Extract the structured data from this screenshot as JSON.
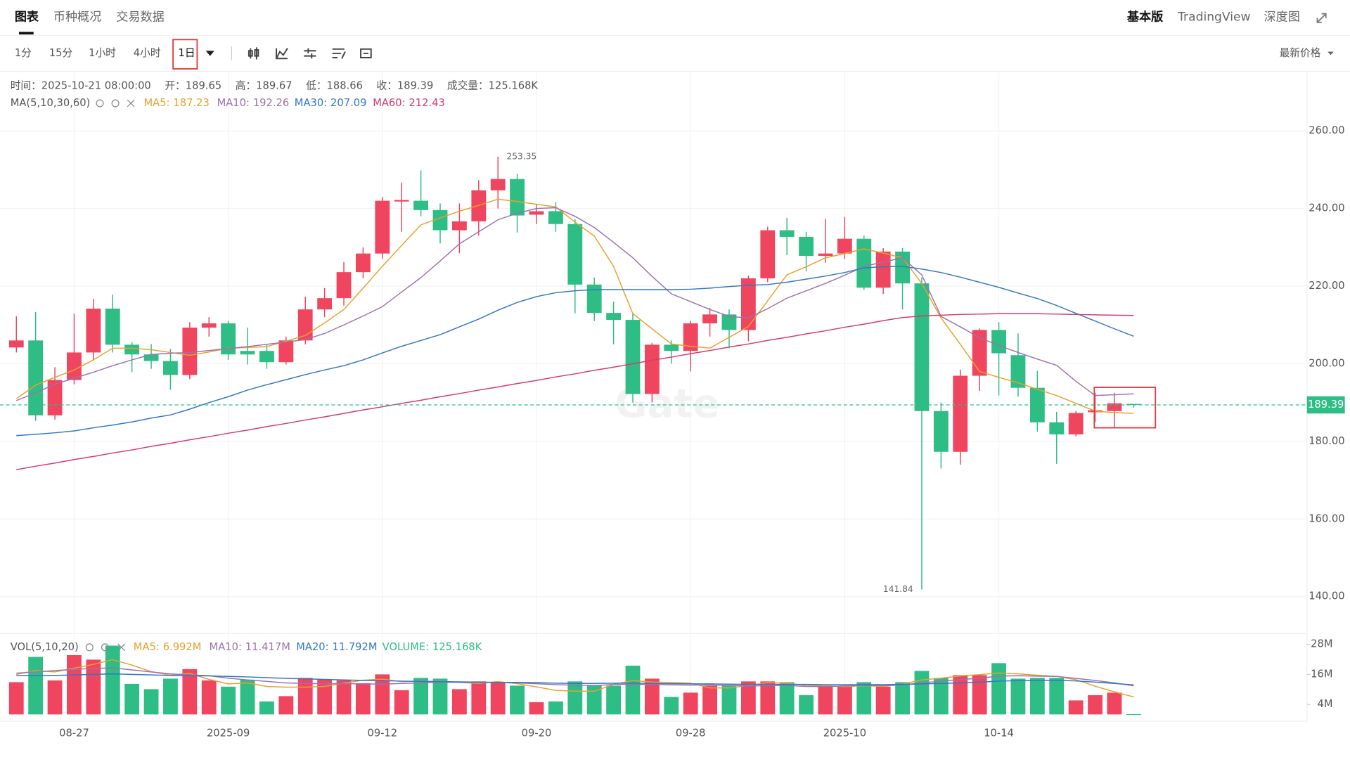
{
  "header": {
    "tabs": [
      "图表",
      "币种概况",
      "交易数据"
    ],
    "links": [
      "基本版",
      "TradingView",
      "深度图"
    ],
    "intervals": [
      "1分",
      "15分",
      "1小时",
      "4小时",
      "1日"
    ],
    "price_mode": "最新价格"
  },
  "chart_data": [
    {
      "type": "candlestick",
      "watermark": "Gate",
      "legend": {
        "time_label": "时间：",
        "time": "2025-10-21 08:00:00",
        "open_label": "开：",
        "high_label": "高：",
        "low_label": "低：",
        "close_label": "收：",
        "volume_label": "成交量："
      },
      "indicator": "MA(5,10,30,60)",
      "categories": [
        null,
        null,
        null,
        "08-27",
        null,
        null,
        null,
        null,
        null,
        null,
        null,
        "2025-09",
        null,
        null,
        null,
        null,
        null,
        null,
        null,
        "09-12",
        null,
        null,
        null,
        null,
        null,
        null,
        null,
        "09-20",
        null,
        null,
        null,
        null,
        null,
        null,
        null,
        "09-28",
        null,
        null,
        null,
        null,
        null,
        null,
        null,
        "2025-10",
        null,
        null,
        null,
        null,
        null,
        null,
        null,
        "10-14",
        null,
        null,
        null,
        null,
        null,
        null,
        null
      ],
      "open": [
        204.2,
        206.0,
        186.7,
        195.8,
        202.9,
        214.2,
        204.9,
        202.4,
        200.7,
        197.1,
        209.3,
        210.4,
        203.3,
        203.3,
        200.4,
        206.0,
        214.0,
        216.9,
        223.6,
        228.4,
        241.8,
        242.0,
        239.6,
        234.4,
        236.7,
        244.7,
        247.6,
        238.4,
        239.3,
        236.0,
        220.4,
        213.1,
        211.3,
        192.2,
        204.9,
        203.3,
        210.4,
        212.7,
        208.7,
        222.0,
        234.4,
        232.7,
        227.8,
        228.4,
        232.2,
        219.6,
        228.9,
        220.7,
        187.8,
        177.3,
        196.9,
        208.7,
        202.2,
        193.8,
        184.9,
        181.8,
        187.5,
        187.8,
        189.65
      ],
      "high": [
        212.2,
        213.3,
        199.1,
        212.9,
        216.7,
        217.8,
        205.6,
        205.1,
        203.8,
        210.7,
        212.0,
        211.1,
        209.3,
        205.1,
        207.0,
        217.3,
        219.5,
        226.2,
        230.0,
        243.0,
        246.7,
        249.8,
        241.3,
        241.3,
        247.3,
        253.35,
        249.0,
        241.0,
        241.6,
        237.3,
        222.2,
        216.0,
        213.0,
        205.4,
        206.0,
        211.1,
        214.4,
        214.0,
        222.7,
        235.3,
        237.6,
        234.0,
        237.3,
        237.8,
        233.0,
        229.8,
        229.8,
        222.2,
        190.0,
        198.5,
        209.1,
        210.7,
        207.8,
        198.2,
        187.6,
        187.8,
        192.5,
        192.5,
        189.67
      ],
      "low": [
        202.9,
        185.3,
        185.6,
        194.7,
        201.0,
        202.9,
        197.8,
        198.7,
        193.3,
        196.0,
        207.0,
        201.0,
        199.8,
        198.7,
        199.8,
        205.0,
        212.0,
        215.0,
        222.0,
        227.0,
        234.0,
        238.0,
        231.0,
        228.5,
        233.0,
        240.0,
        233.8,
        236.0,
        234.0,
        213.0,
        211.0,
        205.0,
        190.0,
        190.0,
        200.0,
        198.0,
        207.0,
        204.0,
        205.8,
        221.0,
        228.0,
        223.8,
        226.0,
        227.0,
        219.0,
        218.0,
        214.0,
        141.84,
        173.0,
        174.0,
        193.0,
        191.8,
        191.5,
        182.5,
        174.2,
        181.3,
        185.0,
        183.6,
        188.66
      ],
      "close": [
        206.0,
        186.7,
        195.8,
        202.9,
        214.2,
        204.9,
        202.4,
        200.7,
        197.1,
        209.3,
        210.4,
        202.4,
        202.4,
        200.4,
        206.0,
        214.0,
        216.9,
        223.6,
        228.4,
        242.0,
        242.2,
        239.6,
        234.4,
        236.7,
        244.7,
        247.6,
        238.2,
        239.3,
        236.0,
        220.4,
        213.1,
        211.3,
        192.2,
        204.9,
        203.3,
        210.4,
        212.7,
        208.7,
        222.0,
        234.4,
        232.7,
        227.8,
        228.4,
        232.2,
        219.6,
        228.9,
        220.7,
        187.8,
        177.3,
        196.9,
        208.7,
        202.7,
        193.8,
        184.9,
        181.8,
        187.3,
        188.0,
        189.8,
        189.39
      ],
      "up_color": "#f0455f",
      "down_color": "#2ebd85",
      "ylim": [
        130.7,
        275.1
      ],
      "yticks": [
        {
          "value": 140,
          "label": "140.00"
        },
        {
          "value": 160,
          "label": "160.00"
        },
        {
          "value": 180,
          "label": "180.00"
        },
        {
          "value": 200,
          "label": "200.00"
        },
        {
          "value": 220,
          "label": "220.00"
        },
        {
          "value": 240,
          "label": "240.00"
        },
        {
          "value": 260,
          "label": "260.00"
        }
      ],
      "grid": true,
      "series": [
        {
          "name": "MA5:",
          "color": "#e9a02b",
          "values": [
            191,
            194.5,
            196.5,
            198.4,
            201,
            204,
            204,
            203.6,
            202.9,
            202.2,
            203,
            204,
            204.2,
            204.4,
            205.8,
            207.3,
            210.5,
            214,
            219.5,
            225.1,
            230.5,
            235.8,
            237.6,
            239.3,
            240.8,
            242.4,
            241.8,
            241.1,
            240.4,
            236.5,
            232.9,
            225.1,
            212.9,
            209,
            205.1,
            204.5,
            204,
            206.8,
            209.6,
            216.2,
            222.9,
            225,
            227.3,
            228.4,
            229.6,
            228.5,
            227.3,
            220.7,
            211.8,
            205,
            198,
            196.5,
            195.1,
            193.4,
            191.8,
            189.8,
            187.8,
            187.4,
            187.23
          ]
        },
        {
          "name": "MA10:",
          "color": "#9b72b0",
          "values": [
            190.5,
            192.5,
            194.7,
            196.3,
            197.8,
            199.5,
            201,
            202.4,
            202.7,
            202.9,
            203.4,
            203.9,
            204.4,
            205,
            205.6,
            206.2,
            207.8,
            210,
            212.3,
            214.7,
            218.5,
            222.2,
            226.5,
            230.9,
            234,
            237.1,
            238.8,
            240,
            240.2,
            238,
            235.1,
            231.3,
            227.3,
            222.5,
            218,
            216,
            214,
            212.2,
            211.8,
            214.2,
            216.9,
            218.8,
            220.7,
            222.8,
            225.1,
            226.2,
            227.3,
            222.9,
            212.2,
            209.5,
            206.7,
            204.7,
            202.9,
            201.2,
            199.6,
            195.5,
            191.8,
            192,
            192.26
          ]
        },
        {
          "name": "MA30:",
          "color": "#3178c6",
          "values": [
            181.5,
            181.8,
            182.2,
            182.7,
            183.5,
            184.2,
            185,
            186,
            186.8,
            188.3,
            190,
            191.5,
            193.2,
            194.6,
            195.9,
            197.2,
            198.4,
            199.5,
            201,
            202.8,
            204.5,
            206,
            207.5,
            209.5,
            211.5,
            213.8,
            215.8,
            217.3,
            218.3,
            218.8,
            219.1,
            219.1,
            219.1,
            219.1,
            219.1,
            219.2,
            219.5,
            219.9,
            220.2,
            220.4,
            221,
            221.8,
            222.6,
            223.5,
            224.7,
            225,
            225.1,
            224.4,
            223.5,
            222.3,
            221,
            219.7,
            218.2,
            216.8,
            215,
            213,
            211,
            209,
            207.09
          ]
        },
        {
          "name": "MA60:",
          "color": "#d63c6a",
          "values": [
            172.7,
            173.6,
            174.4,
            175.3,
            176.1,
            177.0,
            177.8,
            178.7,
            179.5,
            180.4,
            181.2,
            182.1,
            182.9,
            183.8,
            184.6,
            185.5,
            186.3,
            187.2,
            188.1,
            188.9,
            189.8,
            190.6,
            191.5,
            192.3,
            193.2,
            194.0,
            194.9,
            195.7,
            196.6,
            197.4,
            198.3,
            199.1,
            200.0,
            200.9,
            201.7,
            202.6,
            203.4,
            204.3,
            205.1,
            206.0,
            206.8,
            207.7,
            208.5,
            209.4,
            210.2,
            211.1,
            211.9,
            212.3,
            212.5,
            212.7,
            212.8,
            212.9,
            212.9,
            212.9,
            212.8,
            212.7,
            212.6,
            212.5,
            212.43
          ]
        }
      ]
    },
    {
      "type": "bar",
      "indicator": "VOL(5,10,20)",
      "values": [
        12.9,
        23,
        13.6,
        23.7,
        21.9,
        27.5,
        12.2,
        10.1,
        14.3,
        18.1,
        13.6,
        11.1,
        13.9,
        5.2,
        7.3,
        14.6,
        13.9,
        13.6,
        12.5,
        16,
        9.7,
        14.6,
        14.3,
        10.1,
        13.2,
        12.9,
        11.5,
        4.9,
        5.2,
        13.2,
        11.8,
        11.5,
        19.5,
        14.3,
        7,
        8.7,
        11.5,
        11.5,
        13.2,
        13.2,
        12.9,
        7.7,
        11.5,
        11.1,
        12.9,
        11.1,
        12.9,
        17.4,
        14.6,
        15.7,
        15.7,
        20.5,
        14.3,
        14.6,
        14.6,
        5.6,
        7.7,
        8.7,
        0.125168
      ],
      "current_name": "VOLUME:",
      "current_label": "125.168K",
      "ylim": [
        0,
        32
      ],
      "yticks": [
        {
          "value": 4,
          "label": "4M"
        },
        {
          "value": 16,
          "label": "16M"
        },
        {
          "value": 28,
          "label": "28M"
        }
      ],
      "series": [
        {
          "name": "MA5:",
          "color": "#e9a02b",
          "last_label": "6.992M",
          "values": [
            16,
            17.5,
            17,
            18.5,
            20,
            21.9,
            19.7,
            17.1,
            15.7,
            16.4,
            14,
            12.2,
            12.6,
            11.2,
            10.9,
            10.9,
            11.2,
            12.5,
            13.7,
            14.1,
            13.1,
            13.3,
            13.2,
            12.8,
            12.4,
            13.1,
            12.3,
            11,
            9.6,
            9.3,
            9.3,
            12,
            13.6,
            12.9,
            12.8,
            12.5,
            10.6,
            10.6,
            11.6,
            12.7,
            12.5,
            11.6,
            11.5,
            11.1,
            11.5,
            11.2,
            12.1,
            13.8,
            14.5,
            15.4,
            15.9,
            16.6,
            16.2,
            15.7,
            15.2,
            13.9,
            11.3,
            9,
            6.992
          ]
        },
        {
          "name": "MA10:",
          "color": "#9b72b0",
          "last_label": "11.417M",
          "values": [
            16.5,
            17,
            17.5,
            18,
            18.4,
            18.6,
            17.8,
            17,
            16.2,
            15.8,
            15.5,
            14.5,
            13.8,
            13.2,
            12.6,
            12.4,
            12.3,
            12.3,
            12.2,
            12.1,
            12.4,
            12.6,
            12.9,
            12.8,
            12.8,
            12.8,
            12.6,
            12.3,
            11.9,
            11.7,
            11.5,
            12,
            12,
            12,
            11.8,
            11.7,
            11.8,
            11.6,
            11.4,
            11.5,
            11.6,
            11.2,
            11.1,
            11.4,
            11.6,
            11.5,
            11.8,
            12.6,
            13.3,
            13.9,
            14.5,
            15.3,
            15.5,
            15.3,
            15.2,
            14.4,
            13.6,
            12.6,
            11.417
          ]
        },
        {
          "name": "MA20:",
          "color": "#3178c6",
          "last_label": "11.792M",
          "values": [
            15.5,
            15.6,
            15.6,
            15.8,
            16,
            16.2,
            16,
            15.8,
            15.6,
            15.5,
            15.4,
            15.2,
            15,
            14.7,
            14.4,
            14.2,
            14,
            13.8,
            13.6,
            13.5,
            13.3,
            13.2,
            13.1,
            13,
            12.9,
            12.8,
            12.8,
            12.7,
            12.5,
            12.4,
            12.4,
            12.5,
            12.5,
            12.4,
            12.3,
            12.2,
            12.2,
            12.1,
            12,
            12,
            12,
            12,
            11.9,
            11.9,
            11.9,
            11.9,
            12,
            12.2,
            12.4,
            12.6,
            12.9,
            13.3,
            13.5,
            13.6,
            13.7,
            13.4,
            12.9,
            12.4,
            11.792
          ]
        }
      ]
    }
  ]
}
